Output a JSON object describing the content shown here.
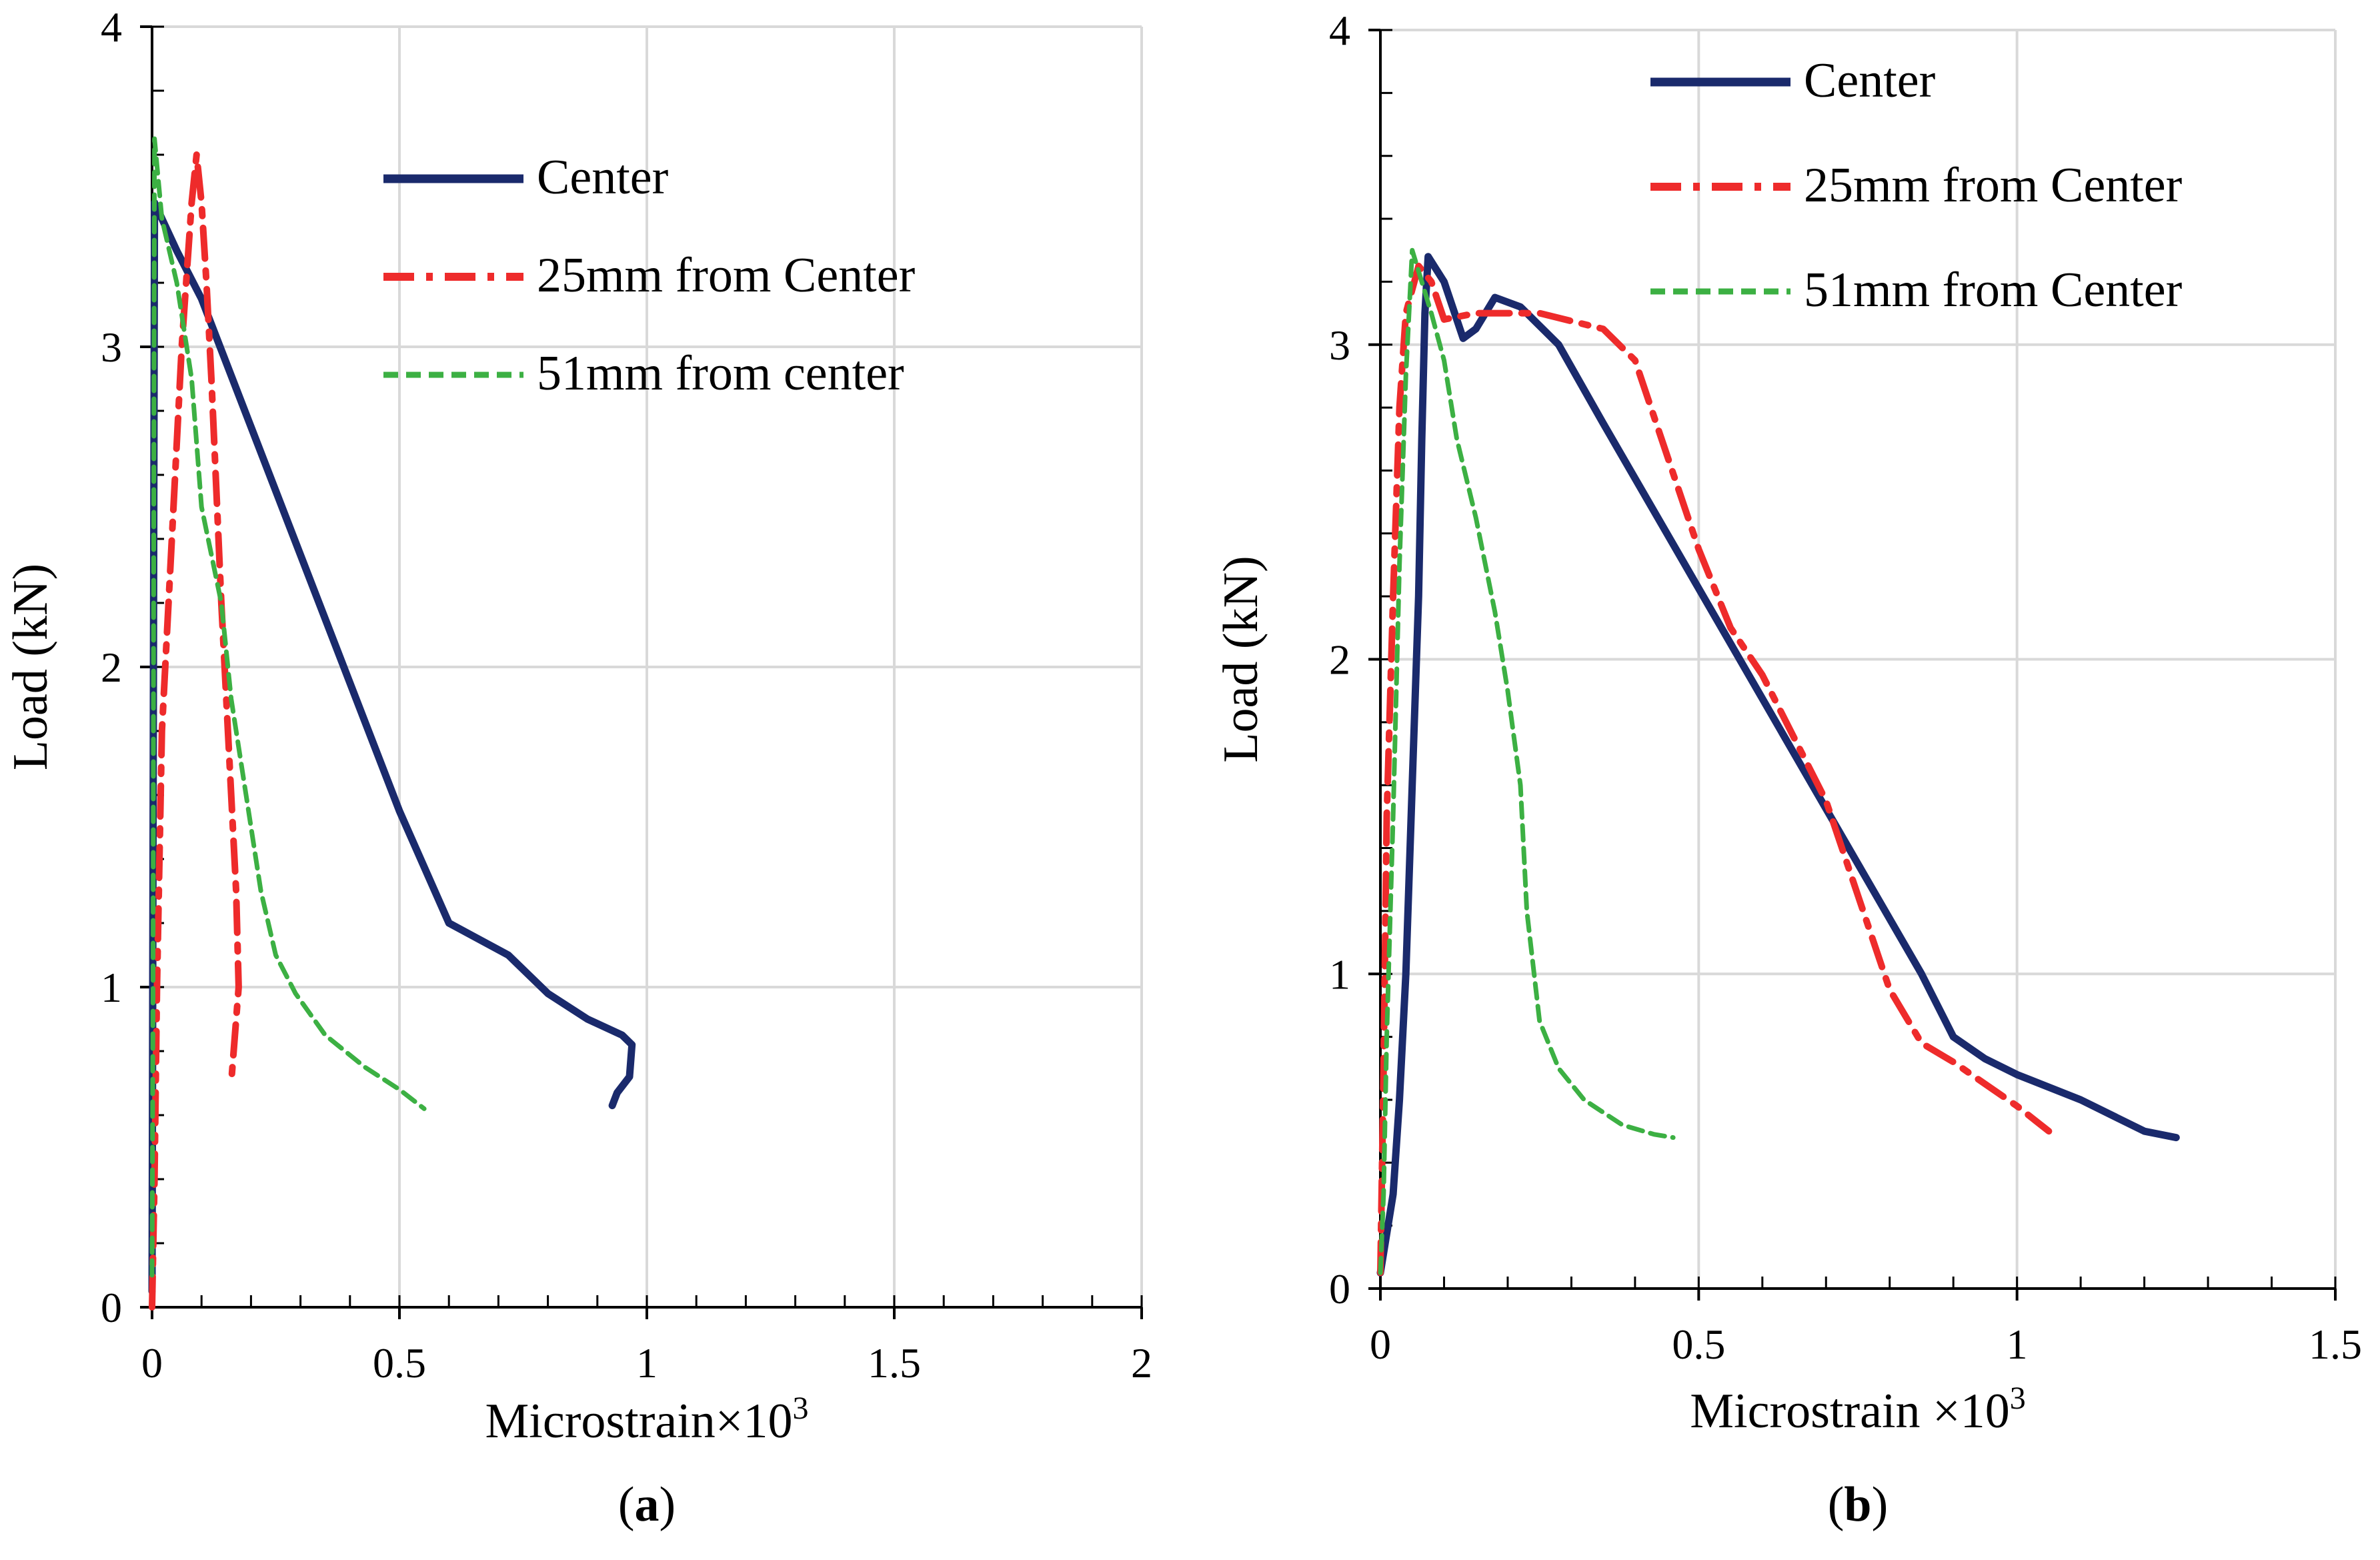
{
  "chart_data": [
    {
      "panel_label": "a",
      "type": "line",
      "xlabel": "Microstrain×10",
      "xlabel_sup": "3",
      "ylabel": "Load (kN)",
      "xlim": [
        0,
        2
      ],
      "ylim": [
        0,
        4
      ],
      "xticks": [
        0,
        0.5,
        1,
        1.5,
        2
      ],
      "yticks": [
        0,
        1,
        2,
        3,
        4
      ],
      "xtick_labels": [
        "0",
        "0.5",
        "1",
        "1.5",
        "2"
      ],
      "ytick_labels": [
        "0",
        "1",
        "2",
        "3",
        "4"
      ],
      "grid": true,
      "legend_position": "top-right",
      "series": [
        {
          "name": "Center",
          "color": "#1a2a6c",
          "style": "solid",
          "points": [
            [
              0,
              0.05
            ],
            [
              0.005,
              3.45
            ],
            [
              0.05,
              3.3
            ],
            [
              0.1,
              3.15
            ],
            [
              0.2,
              2.75
            ],
            [
              0.3,
              2.35
            ],
            [
              0.4,
              1.95
            ],
            [
              0.5,
              1.55
            ],
            [
              0.6,
              1.2
            ],
            [
              0.72,
              1.1
            ],
            [
              0.8,
              0.98
            ],
            [
              0.88,
              0.9
            ],
            [
              0.95,
              0.85
            ],
            [
              0.97,
              0.82
            ],
            [
              0.965,
              0.72
            ],
            [
              0.94,
              0.67
            ],
            [
              0.93,
              0.63
            ]
          ]
        },
        {
          "name": "25mm from Center",
          "color": "#ee2b2b",
          "style": "dashdot",
          "points": [
            [
              0.0,
              0.0
            ],
            [
              0.005,
              0.4
            ],
            [
              0.01,
              1.0
            ],
            [
              0.02,
              1.8
            ],
            [
              0.04,
              2.4
            ],
            [
              0.06,
              3.0
            ],
            [
              0.08,
              3.45
            ],
            [
              0.09,
              3.6
            ],
            [
              0.1,
              3.45
            ],
            [
              0.11,
              3.2
            ],
            [
              0.12,
              2.9
            ],
            [
              0.13,
              2.55
            ],
            [
              0.14,
              2.2
            ],
            [
              0.15,
              1.9
            ],
            [
              0.16,
              1.6
            ],
            [
              0.17,
              1.3
            ],
            [
              0.175,
              1.0
            ],
            [
              0.165,
              0.8
            ],
            [
              0.16,
              0.7
            ]
          ]
        },
        {
          "name": "51mm from center",
          "color": "#3cb043",
          "style": "dashed",
          "points": [
            [
              0,
              0.1
            ],
            [
              0.002,
              1.0
            ],
            [
              0.003,
              2.0
            ],
            [
              0.004,
              3.0
            ],
            [
              0.005,
              3.65
            ],
            [
              0.02,
              3.4
            ],
            [
              0.05,
              3.2
            ],
            [
              0.08,
              2.9
            ],
            [
              0.1,
              2.5
            ],
            [
              0.14,
              2.2
            ],
            [
              0.16,
              1.9
            ],
            [
              0.19,
              1.6
            ],
            [
              0.22,
              1.3
            ],
            [
              0.25,
              1.1
            ],
            [
              0.29,
              0.98
            ],
            [
              0.35,
              0.85
            ],
            [
              0.43,
              0.75
            ],
            [
              0.5,
              0.68
            ],
            [
              0.55,
              0.62
            ]
          ]
        }
      ]
    },
    {
      "panel_label": "b",
      "type": "line",
      "xlabel": "Microstrain ×10",
      "xlabel_sup": "3",
      "ylabel": "Load (kN)",
      "xlim": [
        0,
        1.5
      ],
      "ylim": [
        0,
        4
      ],
      "xticks": [
        0,
        0.5,
        1,
        1.5
      ],
      "yticks": [
        0,
        1,
        2,
        3,
        4
      ],
      "xtick_labels": [
        "0",
        "0.5",
        "1",
        "1.5"
      ],
      "ytick_labels": [
        "0",
        "1",
        "2",
        "3",
        "4"
      ],
      "grid": true,
      "legend_position": "top-right",
      "series": [
        {
          "name": "Center",
          "color": "#1a2a6c",
          "style": "solid",
          "points": [
            [
              0,
              0.05
            ],
            [
              0.02,
              0.3
            ],
            [
              0.03,
              0.6
            ],
            [
              0.04,
              1.0
            ],
            [
              0.05,
              1.6
            ],
            [
              0.06,
              2.2
            ],
            [
              0.065,
              2.7
            ],
            [
              0.07,
              3.1
            ],
            [
              0.075,
              3.28
            ],
            [
              0.1,
              3.2
            ],
            [
              0.13,
              3.02
            ],
            [
              0.15,
              3.05
            ],
            [
              0.18,
              3.15
            ],
            [
              0.22,
              3.12
            ],
            [
              0.28,
              3.0
            ],
            [
              0.35,
              2.75
            ],
            [
              0.45,
              2.4
            ],
            [
              0.55,
              2.05
            ],
            [
              0.65,
              1.7
            ],
            [
              0.75,
              1.35
            ],
            [
              0.85,
              1.0
            ],
            [
              0.9,
              0.8
            ],
            [
              0.95,
              0.73
            ],
            [
              1.0,
              0.68
            ],
            [
              1.1,
              0.6
            ],
            [
              1.2,
              0.5
            ],
            [
              1.25,
              0.48
            ]
          ]
        },
        {
          "name": "25mm from Center",
          "color": "#ee2b2b",
          "style": "dashdot",
          "points": [
            [
              0,
              0.05
            ],
            [
              0.005,
              0.7
            ],
            [
              0.01,
              1.5
            ],
            [
              0.02,
              2.2
            ],
            [
              0.03,
              2.8
            ],
            [
              0.04,
              3.1
            ],
            [
              0.06,
              3.25
            ],
            [
              0.08,
              3.2
            ],
            [
              0.1,
              3.08
            ],
            [
              0.15,
              3.1
            ],
            [
              0.25,
              3.1
            ],
            [
              0.35,
              3.05
            ],
            [
              0.4,
              2.95
            ],
            [
              0.45,
              2.65
            ],
            [
              0.5,
              2.35
            ],
            [
              0.55,
              2.1
            ],
            [
              0.6,
              1.95
            ],
            [
              0.65,
              1.75
            ],
            [
              0.7,
              1.55
            ],
            [
              0.75,
              1.25
            ],
            [
              0.8,
              0.95
            ],
            [
              0.85,
              0.78
            ],
            [
              0.9,
              0.72
            ],
            [
              0.95,
              0.65
            ],
            [
              1.0,
              0.58
            ],
            [
              1.05,
              0.5
            ]
          ]
        },
        {
          "name": "51mm from Center",
          "color": "#3cb043",
          "style": "dashed",
          "points": [
            [
              0,
              0.05
            ],
            [
              0.005,
              0.3
            ],
            [
              0.01,
              0.8
            ],
            [
              0.02,
              1.5
            ],
            [
              0.03,
              2.3
            ],
            [
              0.04,
              2.9
            ],
            [
              0.05,
              3.3
            ],
            [
              0.08,
              3.1
            ],
            [
              0.1,
              2.95
            ],
            [
              0.12,
              2.7
            ],
            [
              0.15,
              2.45
            ],
            [
              0.18,
              2.15
            ],
            [
              0.2,
              1.9
            ],
            [
              0.22,
              1.6
            ],
            [
              0.23,
              1.2
            ],
            [
              0.25,
              0.85
            ],
            [
              0.28,
              0.7
            ],
            [
              0.32,
              0.6
            ],
            [
              0.38,
              0.52
            ],
            [
              0.43,
              0.49
            ],
            [
              0.46,
              0.48
            ]
          ]
        }
      ]
    }
  ]
}
